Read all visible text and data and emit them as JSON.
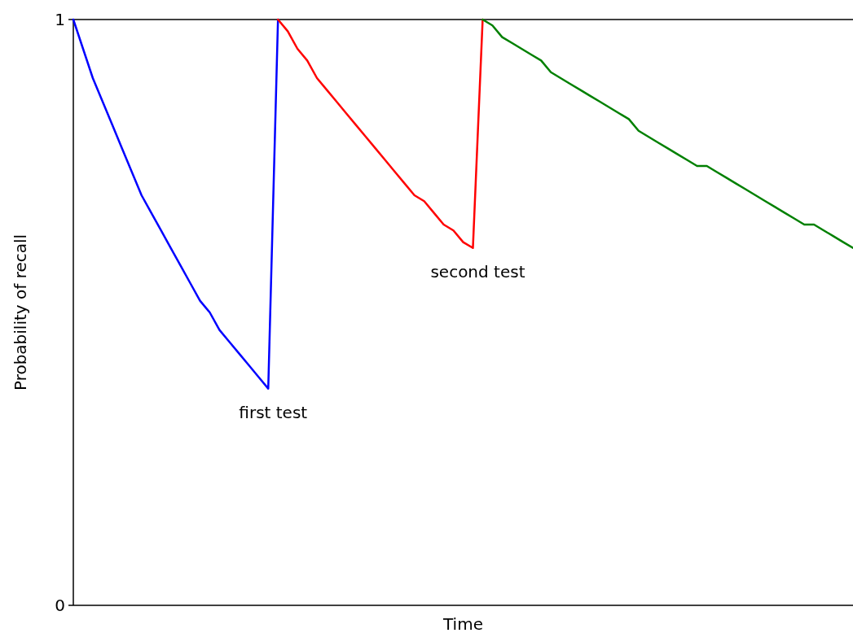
{
  "chart_data": {
    "type": "line",
    "xlabel": "Time",
    "ylabel": "Probability of recall",
    "categories": [
      null,
      null,
      null,
      null,
      null,
      null,
      null,
      null,
      null,
      null,
      null,
      null,
      null,
      null,
      null,
      null,
      null,
      null,
      null,
      null,
      null,
      null,
      null,
      null,
      null,
      null,
      null,
      null,
      null,
      null,
      null,
      null,
      null,
      null,
      null,
      null,
      null,
      null,
      null,
      null,
      null,
      null,
      null,
      null,
      null,
      null,
      null,
      null,
      null,
      null,
      null,
      null,
      null,
      null,
      null,
      null,
      null,
      null,
      null,
      null,
      null,
      null,
      null,
      null,
      null,
      null,
      null,
      null,
      null,
      null,
      null,
      null,
      null,
      null,
      null,
      null,
      null,
      null,
      null,
      null,
      null
    ],
    "ylim": [
      0,
      1
    ],
    "yticks": [
      0,
      1
    ],
    "grid": false,
    "marker": "none",
    "line_style": "solid",
    "series": [
      {
        "color": "#0000ff",
        "values": [
          1,
          0.95,
          0.9,
          0.86,
          0.82,
          0.78,
          0.74,
          0.7,
          0.67,
          0.64,
          0.61,
          0.58,
          0.55,
          0.52,
          0.5,
          0.47,
          0.45,
          0.43,
          0.41,
          0.39,
          0.37,
          1,
          null,
          null,
          null,
          null,
          null,
          null,
          null,
          null,
          null,
          null,
          null,
          null,
          null,
          null,
          null,
          null,
          null,
          null,
          null,
          null,
          null,
          null,
          null,
          null,
          null,
          null,
          null,
          null,
          null,
          null,
          null,
          null,
          null,
          null,
          null,
          null,
          null,
          null,
          null,
          null,
          null,
          null,
          null,
          null,
          null,
          null,
          null,
          null,
          null,
          null,
          null,
          null,
          null,
          null,
          null,
          null,
          null,
          null,
          null
        ]
      },
      {
        "color": "#ff0000",
        "values": [
          null,
          null,
          null,
          null,
          null,
          null,
          null,
          null,
          null,
          null,
          null,
          null,
          null,
          null,
          null,
          null,
          null,
          null,
          null,
          null,
          null,
          1,
          0.98,
          0.95,
          0.93,
          0.9,
          0.88,
          0.86,
          0.84,
          0.82,
          0.8,
          0.78,
          0.76,
          0.74,
          0.72,
          0.7,
          0.69,
          0.67,
          0.65,
          0.64,
          0.62,
          0.61,
          1,
          null,
          null,
          null,
          null,
          null,
          null,
          null,
          null,
          null,
          null,
          null,
          null,
          null,
          null,
          null,
          null,
          null,
          null,
          null,
          null,
          null,
          null,
          null,
          null,
          null,
          null,
          null,
          null,
          null,
          null,
          null,
          null,
          null,
          null,
          null,
          null,
          null,
          null
        ]
      },
      {
        "color": "#008000",
        "values": [
          null,
          null,
          null,
          null,
          null,
          null,
          null,
          null,
          null,
          null,
          null,
          null,
          null,
          null,
          null,
          null,
          null,
          null,
          null,
          null,
          null,
          null,
          null,
          null,
          null,
          null,
          null,
          null,
          null,
          null,
          null,
          null,
          null,
          null,
          null,
          null,
          null,
          null,
          null,
          null,
          null,
          null,
          1,
          0.99,
          0.97,
          0.96,
          0.95,
          0.94,
          0.93,
          0.91,
          0.9,
          0.89,
          0.88,
          0.87,
          0.86,
          0.85,
          0.84,
          0.83,
          0.81,
          0.8,
          0.79,
          0.78,
          0.77,
          0.76,
          0.75,
          0.75,
          0.74,
          0.73,
          0.72,
          0.71,
          0.7,
          0.69,
          0.68,
          0.67,
          0.66,
          0.65,
          0.65,
          0.64,
          0.63,
          0.62,
          0.61
        ]
      }
    ],
    "annotations": [
      "first test",
      "second test"
    ]
  }
}
